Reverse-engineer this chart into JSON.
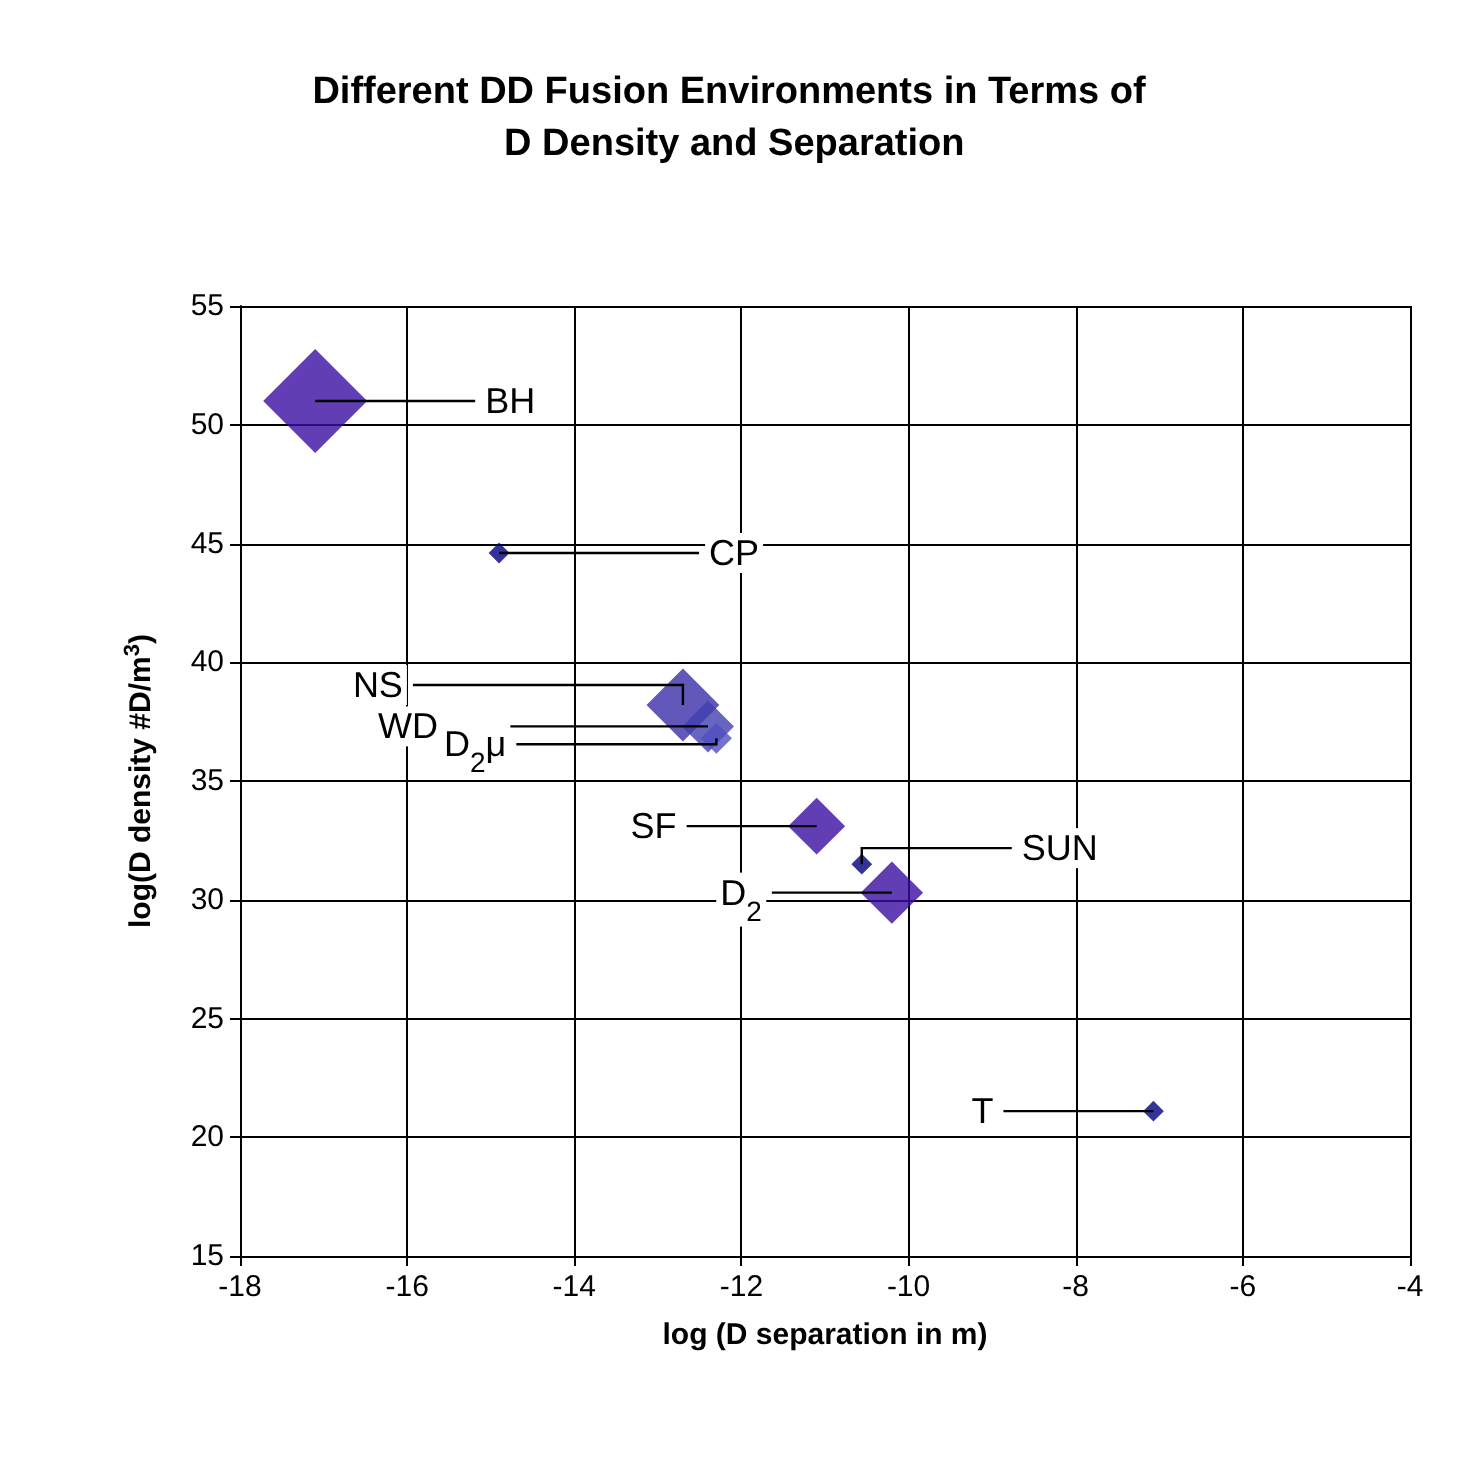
{
  "chart_data": {
    "type": "bubble",
    "title": "Different DD Fusion Environments in Terms of D Density and Separation",
    "xlabel": "log (D separation in m)",
    "ylabel": "log(D density #D/m$^{3}$)",
    "x": [
      -17.1,
      -14.9,
      -12.7,
      -12.4,
      -12.3,
      -11.1,
      -10.56,
      -10.2,
      -7.07
    ],
    "values": [
      51.0,
      44.6,
      38.2,
      37.3,
      36.8,
      33.1,
      31.5,
      30.3,
      21.1
    ],
    "sizes": [
      1,
      0.04,
      0.49,
      0.25,
      0.09,
      0.3,
      0.04,
      0.36,
      0.04
    ],
    "colors": [
      "#3a0ea0",
      "#000080",
      "#3a2ea8",
      "#4040b0",
      "#5050c0",
      "#3a0ea0",
      "#000080",
      "#3a0ea0",
      "#000080"
    ],
    "marker": "diamond",
    "xlim": [
      -18,
      -4
    ],
    "xticks": [
      -18,
      -16,
      -14,
      -12,
      -10,
      -8,
      -6,
      -4
    ],
    "ylim": [
      15,
      55
    ],
    "yticks": [
      15,
      20,
      25,
      30,
      35,
      40,
      45,
      50,
      55
    ],
    "grid": true,
    "annotations": [
      {
        "text": "BH",
        "x": -17.1,
        "y": 51.0
      },
      {
        "text": "CP",
        "x": -14.9,
        "y": 44.6
      },
      {
        "text": "NS",
        "x": -12.7,
        "y": 38.2
      },
      {
        "text": "WD",
        "x": -12.4,
        "y": 37.3
      },
      {
        "text": "D$_{2}$μ",
        "x": -12.3,
        "y": 36.8
      },
      {
        "text": "SF",
        "x": -11.1,
        "y": 33.1
      },
      {
        "text": "SUN",
        "x": -10.56,
        "y": 31.5
      },
      {
        "text": "D$_{2}$",
        "x": -10.2,
        "y": 30.3
      },
      {
        "text": "T",
        "x": -7.07,
        "y": 21.1
      }
    ]
  }
}
